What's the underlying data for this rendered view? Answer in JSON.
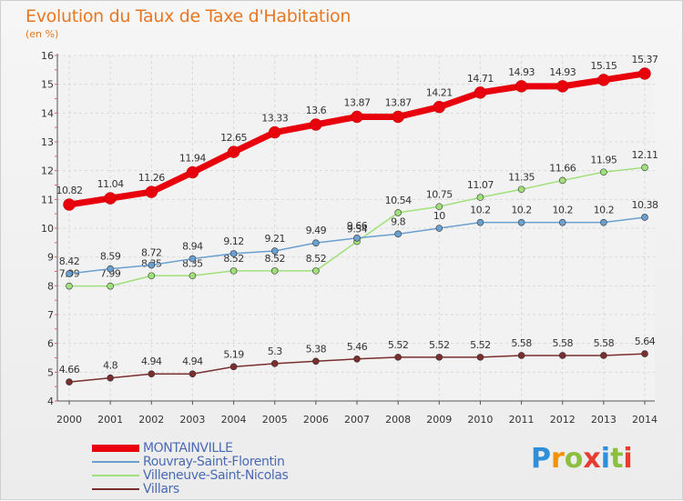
{
  "page": {
    "title": "Evolution du Taux de Taxe d'Habitation",
    "unit": "(en %)",
    "brand_letters": [
      "P",
      "r",
      "o",
      "x",
      "i",
      "t",
      "i"
    ],
    "brand_colors": [
      "#2f8fd8",
      "#f39200",
      "#8cbf3f",
      "#e73c2f",
      "#2f8fd8",
      "#8cbf3f",
      "#e73c2f"
    ]
  },
  "chart_data": {
    "type": "line",
    "title": "Evolution du Taux de Taxe d'Habitation",
    "ylabel": "(en %)",
    "x": [
      "2000",
      "2001",
      "2002",
      "2003",
      "2004",
      "2005",
      "2006",
      "2007",
      "2008",
      "2009",
      "2010",
      "2011",
      "2012",
      "2013",
      "2014"
    ],
    "ylim": [
      4,
      16
    ],
    "yticks": [
      "4",
      "5",
      "6",
      "7",
      "8",
      "9",
      "10",
      "11",
      "12",
      "13",
      "14",
      "15",
      "16"
    ],
    "grid": true,
    "legend_position": "bottom-left",
    "series": [
      {
        "name": "MONTAINVILLE",
        "color": "#e8000d",
        "values": [
          10.82,
          11.04,
          11.26,
          11.94,
          12.65,
          13.33,
          13.6,
          13.87,
          13.87,
          14.21,
          14.71,
          14.93,
          14.93,
          15.15,
          15.37
        ],
        "labels": [
          "10.82",
          "11.04",
          "11.26",
          "11.94",
          "12.65",
          "13.33",
          "13.6",
          "13.87",
          "13.87",
          "14.21",
          "14.71",
          "14.93",
          "14.93",
          "15.15",
          "15.37"
        ]
      },
      {
        "name": "Rouvray-Saint-Florentin",
        "color": "#6a9fd0",
        "values": [
          8.42,
          8.59,
          8.72,
          8.94,
          9.12,
          9.21,
          9.49,
          9.66,
          9.8,
          10,
          10.2,
          10.2,
          10.2,
          10.2,
          10.38
        ],
        "labels": [
          "8.42",
          "8.59",
          "8.72",
          "8.94",
          "9.12",
          "9.21",
          "9.49",
          "9.66",
          "9.8",
          "10",
          "10.2",
          "10.2",
          "10.2",
          "10.2",
          "10.38"
        ]
      },
      {
        "name": "Villeneuve-Saint-Nicolas",
        "color": "#9fe07a",
        "values": [
          7.99,
          7.99,
          8.35,
          8.35,
          8.52,
          8.52,
          8.52,
          9.54,
          10.54,
          10.75,
          11.07,
          11.35,
          11.66,
          11.95,
          12.11
        ],
        "labels": [
          "7.99",
          "7.99",
          "8.35",
          "8.35",
          "8.52",
          "8.52",
          "8.52",
          "9.54",
          "10.54",
          "10.75",
          "11.07",
          "11.35",
          "11.66",
          "11.95",
          "12.11"
        ]
      },
      {
        "name": "Villars",
        "color": "#7a2e2e",
        "values": [
          4.66,
          4.8,
          4.94,
          4.94,
          5.19,
          5.3,
          5.38,
          5.46,
          5.52,
          5.52,
          5.52,
          5.58,
          5.58,
          5.58,
          5.64
        ],
        "labels": [
          "4.66",
          "4.8",
          "4.94",
          "4.94",
          "5.19",
          "5.3",
          "5.38",
          "5.46",
          "5.52",
          "5.52",
          "5.52",
          "5.58",
          "5.58",
          "5.58",
          "5.64"
        ]
      }
    ]
  }
}
